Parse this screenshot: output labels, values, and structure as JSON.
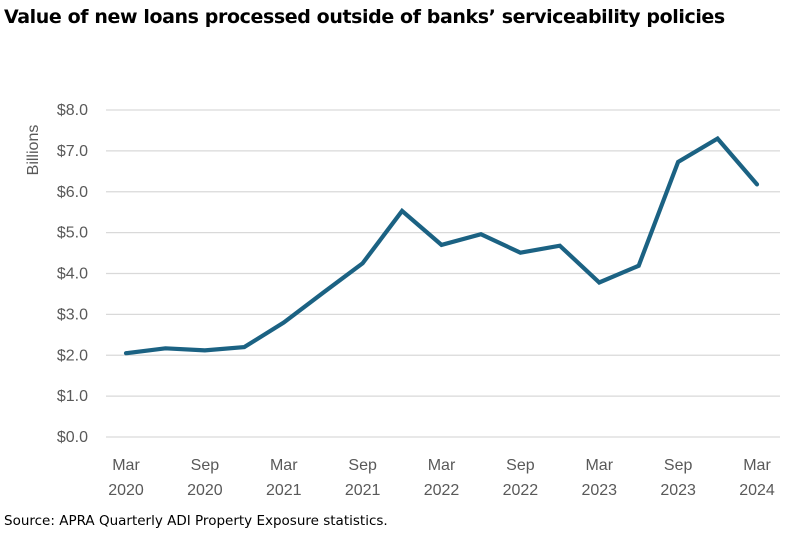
{
  "chart_data": {
    "type": "line",
    "title": "Value of new loans processed outside of banks’ serviceability policies",
    "ylabel": "Billions",
    "xlabel": "",
    "ylim": [
      0,
      8
    ],
    "yticks": [
      "$0.0",
      "$1.0",
      "$2.0",
      "$3.0",
      "$4.0",
      "$5.0",
      "$6.0",
      "$7.0",
      "$8.0"
    ],
    "xtick_labels": [
      [
        "Mar",
        "2020"
      ],
      [
        "Sep",
        "2020"
      ],
      [
        "Mar",
        "2021"
      ],
      [
        "Sep",
        "2021"
      ],
      [
        "Mar",
        "2022"
      ],
      [
        "Sep",
        "2022"
      ],
      [
        "Mar",
        "2023"
      ],
      [
        "Sep",
        "2023"
      ],
      [
        "Mar",
        "2024"
      ]
    ],
    "x": [
      "Mar 2020",
      "Jun 2020",
      "Sep 2020",
      "Dec 2020",
      "Mar 2021",
      "Jun 2021",
      "Sep 2021",
      "Dec 2021",
      "Mar 2022",
      "Jun 2022",
      "Sep 2022",
      "Dec 2022",
      "Mar 2023",
      "Jun 2023",
      "Sep 2023",
      "Dec 2023",
      "Mar 2024"
    ],
    "series": [
      {
        "values": [
          2.05,
          2.17,
          2.12,
          2.2,
          2.8,
          3.53,
          4.25,
          5.53,
          4.7,
          4.96,
          4.51,
          4.68,
          3.78,
          4.19,
          6.73,
          7.3,
          6.18
        ],
        "color": "#1b6283"
      }
    ],
    "grid": true,
    "legend": "none"
  },
  "source": "Source: APRA Quarterly ADI Property Exposure statistics."
}
